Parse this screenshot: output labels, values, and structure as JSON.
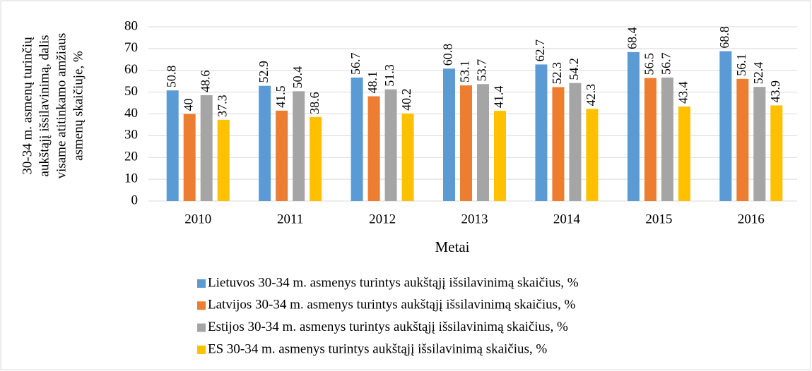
{
  "chart_data": {
    "type": "bar",
    "ylabel": [
      "30-34 m. asmenų turinčių",
      "aukštąjį išsilavinimą, dalis",
      "visame atitinkamo amžiaus",
      "asmenų skaičiuje, %"
    ],
    "xlabel": "Metai",
    "categories": [
      "2010",
      "2011",
      "2012",
      "2013",
      "2014",
      "2015",
      "2016"
    ],
    "series": [
      {
        "name": "Lietuvos 30-34 m. asmenys turintys aukštąjį išsilavinimą skaičius, %",
        "color": "#5b9bd5",
        "values": [
          50.8,
          52.9,
          56.7,
          60.8,
          62.7,
          68.4,
          68.8
        ]
      },
      {
        "name": "Latvijos 30-34 m. asmenys turintys aukštąjį išsilavinimą skaičius, %",
        "color": "#ed7d31",
        "values": [
          40,
          41.5,
          48.1,
          53.1,
          52.3,
          56.5,
          56.1
        ]
      },
      {
        "name": "Estijos 30-34 m. asmenys turintys aukštąjį išsilavinimą skaičius, %",
        "color": "#a5a5a5",
        "values": [
          48.6,
          50.4,
          51.3,
          53.7,
          54.2,
          56.7,
          52.4
        ]
      },
      {
        "name": "ES 30-34 m. asmenys turintys aukštąjį išsilavinimą skaičius, %",
        "color": "#ffc000",
        "values": [
          37.3,
          38.6,
          40.2,
          41.4,
          42.3,
          43.4,
          43.9
        ]
      }
    ],
    "ylim": [
      0,
      80
    ],
    "yticks": [
      0,
      10,
      20,
      30,
      40,
      50,
      60,
      70,
      80
    ],
    "grid": true,
    "legend": "bottom"
  }
}
